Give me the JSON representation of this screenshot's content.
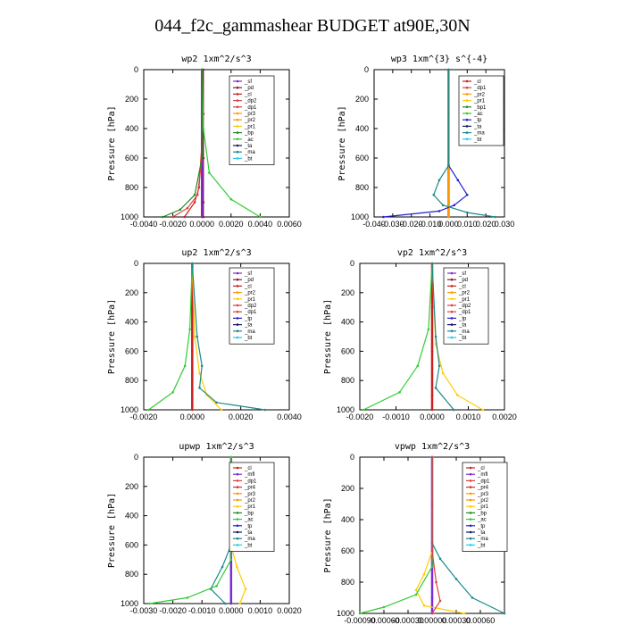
{
  "title": "044_f2c_gammashear  BUDGET at90E,30N",
  "chart_data": [
    {
      "type": "line",
      "title": "wp2   1xm^2/s^3",
      "ylabel": "Pressure [hPa]",
      "ylim": [
        1000,
        0
      ],
      "xlim": [
        -0.004,
        0.006
      ],
      "xticks": [
        "-0.0040",
        "-0.0020",
        "0.0000",
        "0.0020",
        "0.0040",
        "0.0060"
      ],
      "xtick_values": [
        -0.004,
        -0.002,
        0,
        0.002,
        0.004,
        0.006
      ],
      "yticks": [
        0,
        200,
        400,
        600,
        800,
        1000
      ],
      "legend": [
        "_sf",
        "_pd",
        "_cl",
        "_dp2",
        "_dp1",
        "_pr3",
        "_pr2",
        "_pr1",
        "_bp",
        "_ac",
        "_ta",
        "_ma",
        "_bt"
      ],
      "series": [
        {
          "name": "_sf",
          "color": "#7b2bd9",
          "x": [
            0,
            0,
            0,
            0,
            0
          ],
          "y": [
            0,
            300,
            600,
            900,
            1000
          ]
        },
        {
          "name": "_pd",
          "color": "#8a1a3a",
          "x": [
            0.0001,
            0.0001,
            0.0001,
            0.0001,
            0.0001
          ],
          "y": [
            0,
            300,
            600,
            900,
            1000
          ]
        },
        {
          "name": "_cl",
          "color": "#cc2020",
          "x": [
            0,
            0,
            -0.0002,
            -0.0005,
            -0.0012
          ],
          "y": [
            0,
            500,
            800,
            900,
            1000
          ]
        },
        {
          "name": "_dp1",
          "color": "#e04040",
          "x": [
            0,
            0,
            -0.0003,
            -0.001,
            -0.002
          ],
          "y": [
            0,
            600,
            850,
            940,
            1000
          ]
        },
        {
          "name": "_ac",
          "color": "#33cc33",
          "x": [
            0,
            0.0001,
            0.0005,
            0.002,
            0.004
          ],
          "y": [
            0,
            400,
            700,
            880,
            1000
          ]
        },
        {
          "name": "_bp",
          "color": "#228b22",
          "x": [
            0,
            0,
            -0.0005,
            -0.0015,
            -0.0027
          ],
          "y": [
            0,
            600,
            850,
            950,
            1000
          ]
        }
      ]
    },
    {
      "type": "line",
      "title": "wp3   1xm^{3} s^{-4}",
      "ylabel": "Pressure [hPa]",
      "ylim": [
        1000,
        0
      ],
      "xlim": [
        -0.04,
        0.03
      ],
      "xticks": [
        "-0.040",
        "-0.030",
        "-0.020",
        "-0.010",
        "0.000",
        "0.010",
        "0.020",
        "0.030"
      ],
      "xtick_values": [
        -0.04,
        -0.03,
        -0.02,
        -0.01,
        0,
        0.01,
        0.02,
        0.03
      ],
      "yticks": [
        0,
        200,
        400,
        600,
        800,
        1000
      ],
      "legend": [
        "_cl",
        "_dp1",
        "_pr2",
        "_pr1",
        "_bp1",
        "_ac",
        "_tp",
        "_ta",
        "_ma",
        "_bt"
      ],
      "series": [
        {
          "name": "_cl",
          "color": "#cc2020",
          "x": [
            0,
            0,
            0,
            0,
            0
          ],
          "y": [
            0,
            300,
            600,
            900,
            1000
          ]
        },
        {
          "name": "_pr2",
          "color": "#ff9900",
          "x": [
            0,
            0,
            0,
            0,
            0
          ],
          "y": [
            0,
            300,
            600,
            900,
            1000
          ]
        },
        {
          "name": "_tp",
          "color": "#2222cc",
          "x": [
            0,
            0,
            0.005,
            0.01,
            0.003,
            -0.005,
            -0.035
          ],
          "y": [
            0,
            650,
            750,
            850,
            920,
            960,
            1000
          ]
        },
        {
          "name": "_ma",
          "color": "#1a8a8a",
          "x": [
            0,
            0,
            -0.005,
            -0.008,
            -0.003,
            0.01,
            0.025
          ],
          "y": [
            0,
            650,
            750,
            850,
            920,
            970,
            1000
          ]
        }
      ]
    },
    {
      "type": "line",
      "title": "up2   1xm^2/s^3",
      "ylabel": "Pressure [hPa]",
      "ylim": [
        1000,
        0
      ],
      "xlim": [
        -0.002,
        0.004
      ],
      "xticks": [
        "-0.0020",
        "0.0000",
        "0.0020",
        "0.0040"
      ],
      "xtick_values": [
        -0.002,
        0,
        0.002,
        0.004
      ],
      "yticks": [
        0,
        200,
        400,
        600,
        800,
        1000
      ],
      "legend": [
        "_sf",
        "_pd",
        "_cl",
        "_pr2",
        "_pr1",
        "_dp2",
        "_dp1",
        "_tp",
        "_ta",
        "_ma",
        "_bt"
      ],
      "series": [
        {
          "name": "_cl",
          "color": "#cc2020",
          "x": [
            0,
            0,
            0,
            0,
            0
          ],
          "y": [
            0,
            300,
            600,
            900,
            1000
          ]
        },
        {
          "name": "_pr1",
          "color": "#ffcc00",
          "x": [
            0,
            0.0001,
            0.0003,
            0.0006,
            0.0012
          ],
          "y": [
            0,
            500,
            750,
            900,
            1000
          ]
        },
        {
          "name": "_dp1",
          "color": "#33cc33",
          "x": [
            0,
            -0.0001,
            -0.0003,
            -0.0008,
            -0.0018
          ],
          "y": [
            0,
            450,
            700,
            880,
            1000
          ]
        },
        {
          "name": "_ma",
          "color": "#1a8a8a",
          "x": [
            0,
            0.0002,
            0.0004,
            0.0003,
            0.001,
            0.003
          ],
          "y": [
            0,
            500,
            700,
            850,
            950,
            1000
          ]
        }
      ]
    },
    {
      "type": "line",
      "title": "vp2   1xm^2/s^3",
      "ylabel": "Pressure [hPa]",
      "ylim": [
        1000,
        0
      ],
      "xlim": [
        -0.002,
        0.002
      ],
      "xticks": [
        "-0.0020",
        "-0.0010",
        "0.0000",
        "0.0010",
        "0.0020"
      ],
      "xtick_values": [
        -0.002,
        -0.001,
        0,
        0.001,
        0.002
      ],
      "yticks": [
        0,
        200,
        400,
        600,
        800,
        1000
      ],
      "legend": [
        "_sf",
        "_pd",
        "_cl",
        "_pr2",
        "_pr1",
        "_dp2",
        "_dp1",
        "_tp",
        "_ta",
        "_ma",
        "_bt"
      ],
      "series": [
        {
          "name": "_cl",
          "color": "#cc2020",
          "x": [
            0,
            0,
            0,
            0,
            0
          ],
          "y": [
            0,
            300,
            600,
            900,
            1000
          ]
        },
        {
          "name": "_pr1",
          "color": "#ffcc00",
          "x": [
            0,
            0.0001,
            0.0003,
            0.0007,
            0.0014
          ],
          "y": [
            0,
            550,
            750,
            900,
            1000
          ]
        },
        {
          "name": "_dp1",
          "color": "#33cc33",
          "x": [
            0,
            -0.0001,
            -0.0004,
            -0.0009,
            -0.0019
          ],
          "y": [
            0,
            450,
            700,
            880,
            1000
          ]
        },
        {
          "name": "_ma",
          "color": "#1a8a8a",
          "x": [
            0,
            0.0001,
            0.0002,
            0.0001,
            0.0006
          ],
          "y": [
            0,
            500,
            700,
            850,
            1000
          ]
        }
      ]
    },
    {
      "type": "line",
      "title": "upwp   1xm^2/s^3",
      "ylabel": "Pressure [hPa]",
      "ylim": [
        1000,
        0
      ],
      "xlim": [
        -0.003,
        0.002
      ],
      "xticks": [
        "-0.0030",
        "-0.0020",
        "-0.0010",
        "0.0000",
        "0.0010",
        "0.0020"
      ],
      "xtick_values": [
        -0.003,
        -0.002,
        -0.001,
        0,
        0.001,
        0.002
      ],
      "yticks": [
        0,
        200,
        400,
        600,
        800,
        1000
      ],
      "legend": [
        "_cl",
        "_mfl",
        "_dp1",
        "_pr4",
        "_pr3",
        "_pr2",
        "_pr1",
        "_bp",
        "_ac",
        "_tp",
        "_ta",
        "_ma",
        "_bt"
      ],
      "series": [
        {
          "name": "_mfl",
          "color": "#7b2bd9",
          "x": [
            0,
            0,
            0,
            0,
            0
          ],
          "y": [
            0,
            300,
            600,
            900,
            1000
          ]
        },
        {
          "name": "_pr1",
          "color": "#ffcc00",
          "x": [
            0,
            0,
            0.0002,
            0.0005,
            0.0003
          ],
          "y": [
            0,
            600,
            750,
            900,
            1000
          ]
        },
        {
          "name": "_tp",
          "color": "#1a8a8a",
          "x": [
            0,
            0,
            -0.0003,
            -0.0007,
            -0.0002
          ],
          "y": [
            0,
            600,
            750,
            900,
            1000
          ]
        },
        {
          "name": "_ac",
          "color": "#33cc33",
          "x": [
            0,
            0,
            -0.0005,
            -0.0015,
            -0.0028
          ],
          "y": [
            0,
            700,
            880,
            960,
            1000
          ]
        }
      ]
    },
    {
      "type": "line",
      "title": "vpwp   1xm^2/s^3",
      "ylabel": "Pressure [hPa]",
      "ylim": [
        1000,
        0
      ],
      "xlim": [
        -0.0009,
        0.0009
      ],
      "xticks": [
        "-0.00090",
        "-0.00060",
        "-0.00030",
        "0.00000",
        "0.00030",
        "0.00060"
      ],
      "xtick_values": [
        -0.0009,
        -0.0006,
        -0.0003,
        0,
        0.0003,
        0.0006
      ],
      "yticks": [
        0,
        200,
        400,
        600,
        800,
        1000
      ],
      "legend": [
        "_cl",
        "_mfl",
        "_dp1",
        "_pr4",
        "_pr3",
        "_pr2",
        "_pr1",
        "_bp",
        "_ac",
        "_tp",
        "_ta",
        "_ma",
        "_bt"
      ],
      "series": [
        {
          "name": "_mfl",
          "color": "#7b2bd9",
          "x": [
            0,
            0,
            0,
            0,
            0
          ],
          "y": [
            0,
            300,
            600,
            900,
            1000
          ]
        },
        {
          "name": "_pr1",
          "color": "#ffcc00",
          "x": [
            0,
            0,
            -0.0001,
            -0.0002,
            -0.0001,
            0.0004
          ],
          "y": [
            0,
            600,
            750,
            850,
            950,
            1000
          ]
        },
        {
          "name": "_ma",
          "color": "#1a8a8a",
          "x": [
            0,
            0,
            0.0001,
            0.0003,
            0.0005,
            0.0009
          ],
          "y": [
            0,
            550,
            650,
            780,
            900,
            1000
          ]
        },
        {
          "name": "_ac",
          "color": "#33cc33",
          "x": [
            0,
            0,
            -0.0002,
            -0.0006,
            -0.0009
          ],
          "y": [
            0,
            700,
            880,
            960,
            1000
          ]
        },
        {
          "name": "_dp1",
          "color": "#e04040",
          "x": [
            0,
            0,
            5e-05,
            0.0001,
            0
          ],
          "y": [
            0,
            600,
            800,
            920,
            1000
          ]
        }
      ]
    }
  ]
}
